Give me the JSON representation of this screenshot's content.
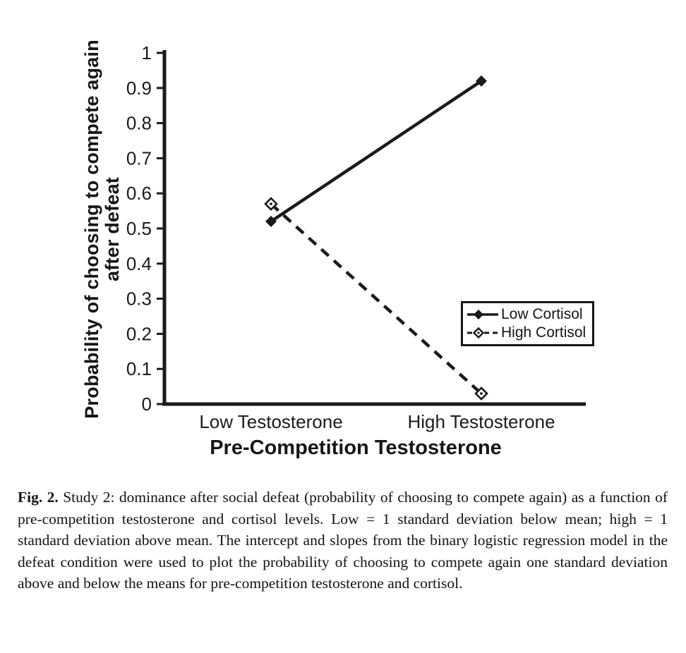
{
  "chart_data": {
    "type": "line",
    "categories": [
      "Low Testosterone",
      "High Testosterone"
    ],
    "series": [
      {
        "name": "Low Cortisol",
        "values": [
          0.52,
          0.92
        ],
        "line_style": "solid",
        "marker": "filled-diamond"
      },
      {
        "name": "High Cortisol",
        "values": [
          0.57,
          0.03
        ],
        "line_style": "dashed",
        "marker": "open-diamond"
      }
    ],
    "xlabel": "Pre-Competition Testosterone",
    "ylabel_line1": "Probability of choosing to compete again",
    "ylabel_line2": "after defeat",
    "ylim": [
      0,
      1
    ],
    "ytick_step": 0.1,
    "ytick_labels": [
      "0",
      "0.1",
      "0.2",
      "0.3",
      "0.4",
      "0.5",
      "0.6",
      "0.7",
      "0.8",
      "0.9",
      "1"
    ],
    "grid": false,
    "legend_position": "right-middle",
    "line_color": "#1a1a1a"
  },
  "figure": {
    "caption": {
      "label": "Fig. 2.",
      "text": "Study 2: dominance after social defeat (probability of choosing to compete again) as a function of pre-competition testosterone and cortisol levels. Low = 1 standard deviation below mean; high = 1 standard deviation above mean. The intercept and slopes from the binary logistic regression model in the defeat condition were used to plot the probability of choosing to compete again one standard deviation above and below the means for pre-competition testosterone and cortisol."
    }
  }
}
